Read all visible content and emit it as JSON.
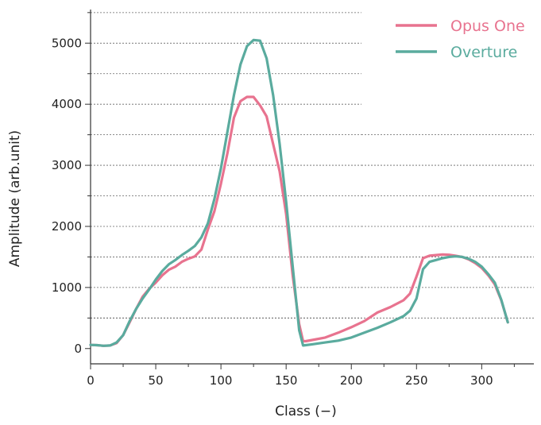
{
  "chart_data": {
    "type": "line",
    "xlabel": "Class (−)",
    "ylabel": "Amplitude (arb.unit)",
    "xlim": [
      0,
      340
    ],
    "ylim": [
      -250,
      5550
    ],
    "xticks": [
      0,
      50,
      100,
      150,
      200,
      250,
      300
    ],
    "yticks": [
      0,
      1000,
      2000,
      3000,
      4000,
      5000
    ],
    "grid": "horizontal dotted",
    "legend_position": "top-right",
    "series": [
      {
        "name": "Opus One",
        "color": "#e8738f",
        "x": [
          0,
          5,
          10,
          15,
          20,
          25,
          30,
          35,
          40,
          45,
          50,
          55,
          60,
          65,
          70,
          75,
          80,
          85,
          90,
          95,
          100,
          105,
          110,
          115,
          120,
          125,
          130,
          135,
          140,
          145,
          150,
          155,
          160,
          163,
          165,
          170,
          180,
          190,
          200,
          210,
          220,
          230,
          240,
          245,
          250,
          255,
          260,
          265,
          270,
          275,
          280,
          285,
          290,
          295,
          300,
          305,
          310,
          315,
          320
        ],
        "y": [
          60,
          55,
          45,
          50,
          90,
          220,
          430,
          650,
          850,
          980,
          1080,
          1200,
          1290,
          1340,
          1420,
          1470,
          1510,
          1620,
          1950,
          2250,
          2700,
          3200,
          3780,
          4050,
          4120,
          4120,
          3980,
          3800,
          3350,
          2900,
          2200,
          1200,
          400,
          120,
          120,
          140,
          180,
          260,
          350,
          450,
          590,
          680,
          790,
          900,
          1180,
          1480,
          1520,
          1530,
          1540,
          1535,
          1520,
          1500,
          1460,
          1400,
          1320,
          1200,
          1050,
          790,
          430
        ]
      },
      {
        "name": "Overture",
        "color": "#5aab9e",
        "x": [
          0,
          5,
          10,
          15,
          20,
          25,
          30,
          35,
          40,
          45,
          50,
          55,
          60,
          65,
          70,
          75,
          80,
          85,
          90,
          95,
          100,
          105,
          110,
          115,
          120,
          125,
          130,
          135,
          140,
          145,
          150,
          155,
          160,
          163,
          165,
          170,
          180,
          190,
          200,
          210,
          220,
          230,
          240,
          245,
          250,
          255,
          260,
          265,
          270,
          275,
          280,
          285,
          290,
          295,
          300,
          305,
          310,
          315,
          320
        ],
        "y": [
          60,
          55,
          45,
          50,
          100,
          220,
          450,
          650,
          820,
          970,
          1130,
          1270,
          1380,
          1450,
          1530,
          1600,
          1680,
          1820,
          2050,
          2450,
          2950,
          3550,
          4150,
          4650,
          4950,
          5050,
          5040,
          4750,
          4150,
          3350,
          2400,
          1350,
          300,
          50,
          55,
          70,
          100,
          130,
          180,
          260,
          340,
          430,
          530,
          620,
          820,
          1300,
          1420,
          1450,
          1480,
          1500,
          1510,
          1500,
          1470,
          1420,
          1340,
          1220,
          1080,
          800,
          430
        ]
      }
    ]
  }
}
